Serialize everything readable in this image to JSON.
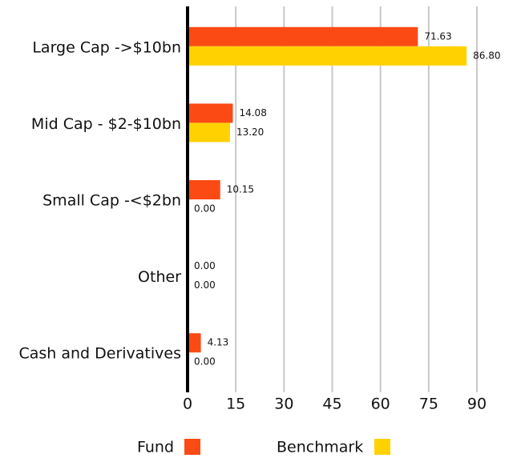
{
  "chart_data": {
    "type": "bar",
    "orientation": "horizontal",
    "categories": [
      "Large Cap ->$10bn",
      "Mid Cap - $2-$10bn",
      "Small Cap -<$2bn",
      "Other",
      "Cash and Derivatives"
    ],
    "series": [
      {
        "name": "Fund",
        "color": "#fc4a14",
        "values": [
          71.63,
          14.08,
          10.15,
          0,
          4.13
        ],
        "value_labels": [
          "71.63",
          "14.08",
          "10.15",
          "0.00",
          "4.13"
        ]
      },
      {
        "name": "Benchmark",
        "color": "#ffd100",
        "values": [
          86.8,
          13.2,
          0,
          0,
          0
        ],
        "value_labels": [
          "86.80",
          "13.20",
          "0.00",
          "0.00",
          "0.00"
        ]
      }
    ],
    "xlim": [
      0,
      90
    ],
    "xticks": [
      0,
      15,
      30,
      45,
      60,
      75,
      90
    ],
    "grid": true,
    "legend": "bottom"
  }
}
